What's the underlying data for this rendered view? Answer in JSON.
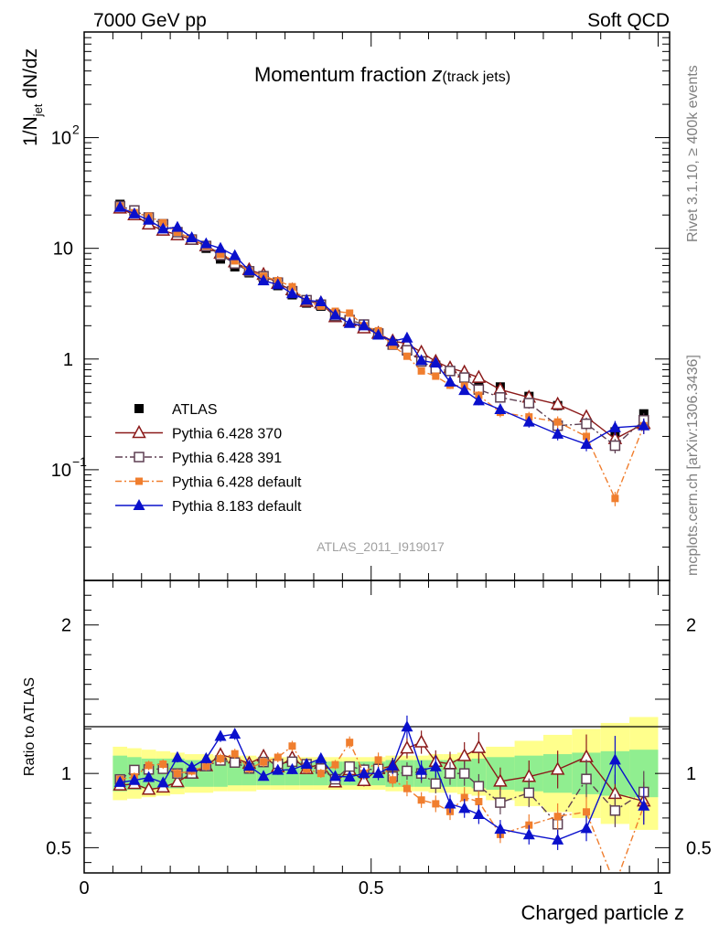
{
  "header": {
    "energy": "7000 GeV pp",
    "process": "Soft QCD"
  },
  "side_labels": {
    "rivet": "Rivet 3.1.10, ≥ 400k events",
    "mcplots": "mcplots.cern.ch [arXiv:1306.3436]"
  },
  "chart_data": {
    "type": "line",
    "title_main": "Momentum fraction ",
    "title_z": "z",
    "title_sub": "(track jets)",
    "ylabel_main": "1/N",
    "ylabel_sub": "jet",
    "ylabel_rest": " dN/dz",
    "xlabel": "Charged particle z",
    "ratio_ylabel": "Ratio to ATLAS",
    "analysis_id": "ATLAS_2011_I919017",
    "xlim": [
      0,
      1.02
    ],
    "ylim_log": [
      0.01,
      900
    ],
    "ratio_ylim": [
      0.33,
      2.3
    ],
    "yticks": [
      {
        "v": 100,
        "label": "10",
        "sup": "2"
      },
      {
        "v": 10,
        "label": "10",
        "sup": ""
      },
      {
        "v": 1,
        "label": "1",
        "sup": ""
      },
      {
        "v": 0.1,
        "label": "10",
        "sup": "−1"
      }
    ],
    "xticks": [
      {
        "v": 0,
        "label": "0"
      },
      {
        "v": 0.5,
        "label": "0.5"
      },
      {
        "v": 1,
        "label": "1"
      }
    ],
    "ratio_yticks": [
      {
        "v": 0.5,
        "label": "0.5"
      },
      {
        "v": 1,
        "label": "1"
      },
      {
        "v": 2,
        "label": "2"
      }
    ],
    "x": [
      0.0625,
      0.0875,
      0.1125,
      0.1375,
      0.1625,
      0.1875,
      0.2125,
      0.2375,
      0.2625,
      0.2875,
      0.3125,
      0.3375,
      0.3625,
      0.3875,
      0.4125,
      0.4375,
      0.4625,
      0.4875,
      0.5125,
      0.5375,
      0.5625,
      0.5875,
      0.6125,
      0.6375,
      0.6625,
      0.6875,
      0.725,
      0.775,
      0.825,
      0.875,
      0.925,
      0.975
    ],
    "band": {
      "edges": [
        0.05,
        0.075,
        0.1,
        0.125,
        0.15,
        0.175,
        0.2,
        0.225,
        0.25,
        0.275,
        0.3,
        0.325,
        0.35,
        0.375,
        0.4,
        0.425,
        0.45,
        0.475,
        0.5,
        0.525,
        0.55,
        0.575,
        0.6,
        0.625,
        0.65,
        0.675,
        0.7,
        0.75,
        0.8,
        0.85,
        0.9,
        0.95,
        1.0
      ],
      "stat": [
        0.12,
        0.11,
        0.1,
        0.1,
        0.1,
        0.09,
        0.09,
        0.09,
        0.08,
        0.08,
        0.08,
        0.08,
        0.08,
        0.08,
        0.08,
        0.08,
        0.08,
        0.08,
        0.08,
        0.09,
        0.09,
        0.09,
        0.09,
        0.09,
        0.09,
        0.1,
        0.11,
        0.12,
        0.13,
        0.14,
        0.15,
        0.16
      ],
      "total": [
        0.18,
        0.17,
        0.16,
        0.15,
        0.14,
        0.13,
        0.13,
        0.12,
        0.12,
        0.12,
        0.11,
        0.11,
        0.11,
        0.11,
        0.11,
        0.11,
        0.11,
        0.11,
        0.11,
        0.12,
        0.12,
        0.12,
        0.13,
        0.13,
        0.14,
        0.15,
        0.18,
        0.22,
        0.26,
        0.3,
        0.34,
        0.38
      ]
    },
    "series": [
      {
        "name": "ATLAS",
        "color": "#000000",
        "marker": "square-filled",
        "dash": "none",
        "values": [
          25,
          21.5,
          18.5,
          16,
          14,
          12,
          10,
          8,
          6.8,
          6,
          5.2,
          4.6,
          3.8,
          3.2,
          3.0,
          2.55,
          2.15,
          2.0,
          1.65,
          1.38,
          1.18,
          0.95,
          0.88,
          0.78,
          0.68,
          0.58,
          0.56,
          0.46,
          0.38,
          0.27,
          0.22,
          0.32
        ]
      },
      {
        "name": "Pythia 6.428 370",
        "color": "#8b1a1a",
        "marker": "triangle-open",
        "dash": "none",
        "values": [
          23,
          20,
          16.5,
          14.5,
          13.2,
          12,
          10.5,
          9.0,
          7.5,
          6.4,
          5.8,
          4.8,
          4.2,
          3.3,
          3.2,
          2.4,
          2.2,
          1.9,
          1.7,
          1.45,
          1.38,
          1.15,
          0.95,
          0.83,
          0.76,
          0.68,
          0.53,
          0.45,
          0.39,
          0.3,
          0.19,
          0.26
        ]
      },
      {
        "name": "Pythia 6.428 391",
        "color": "#5e3f52",
        "marker": "square-open",
        "dash": "8,3,2,3",
        "values": [
          24,
          22,
          19,
          16.5,
          14,
          12,
          10.5,
          8.7,
          7.3,
          6.2,
          5.6,
          4.9,
          4.1,
          3.4,
          3.1,
          2.45,
          2.25,
          2.05,
          1.7,
          1.35,
          1.2,
          0.95,
          0.82,
          0.78,
          0.68,
          0.53,
          0.45,
          0.4,
          0.25,
          0.26,
          0.165,
          0.28
        ]
      },
      {
        "name": "Pythia 6.428 default",
        "color": "#f07e2e",
        "marker": "square-filled-small",
        "dash": "7,3,2,3",
        "values": [
          24,
          21,
          19.5,
          17,
          14,
          12.2,
          10.5,
          8.8,
          7.7,
          6.2,
          5.6,
          5.1,
          4.5,
          3.3,
          3.0,
          2.7,
          2.6,
          2.0,
          1.8,
          1.32,
          1.06,
          0.78,
          0.7,
          0.58,
          0.57,
          0.47,
          0.33,
          0.3,
          0.27,
          0.2,
          0.055,
          0.25
        ]
      },
      {
        "name": "Pythia 8.183 default",
        "color": "#0a10cc",
        "marker": "triangle-filled",
        "dash": "none",
        "values": [
          23.5,
          20.5,
          18,
          15,
          15.5,
          12.5,
          11,
          10,
          8.6,
          6.3,
          5.1,
          4.7,
          3.9,
          3.4,
          3.3,
          2.5,
          2.1,
          2.0,
          1.65,
          1.45,
          1.55,
          0.97,
          0.92,
          0.62,
          0.52,
          0.42,
          0.35,
          0.27,
          0.21,
          0.17,
          0.24,
          0.25
        ]
      }
    ]
  }
}
